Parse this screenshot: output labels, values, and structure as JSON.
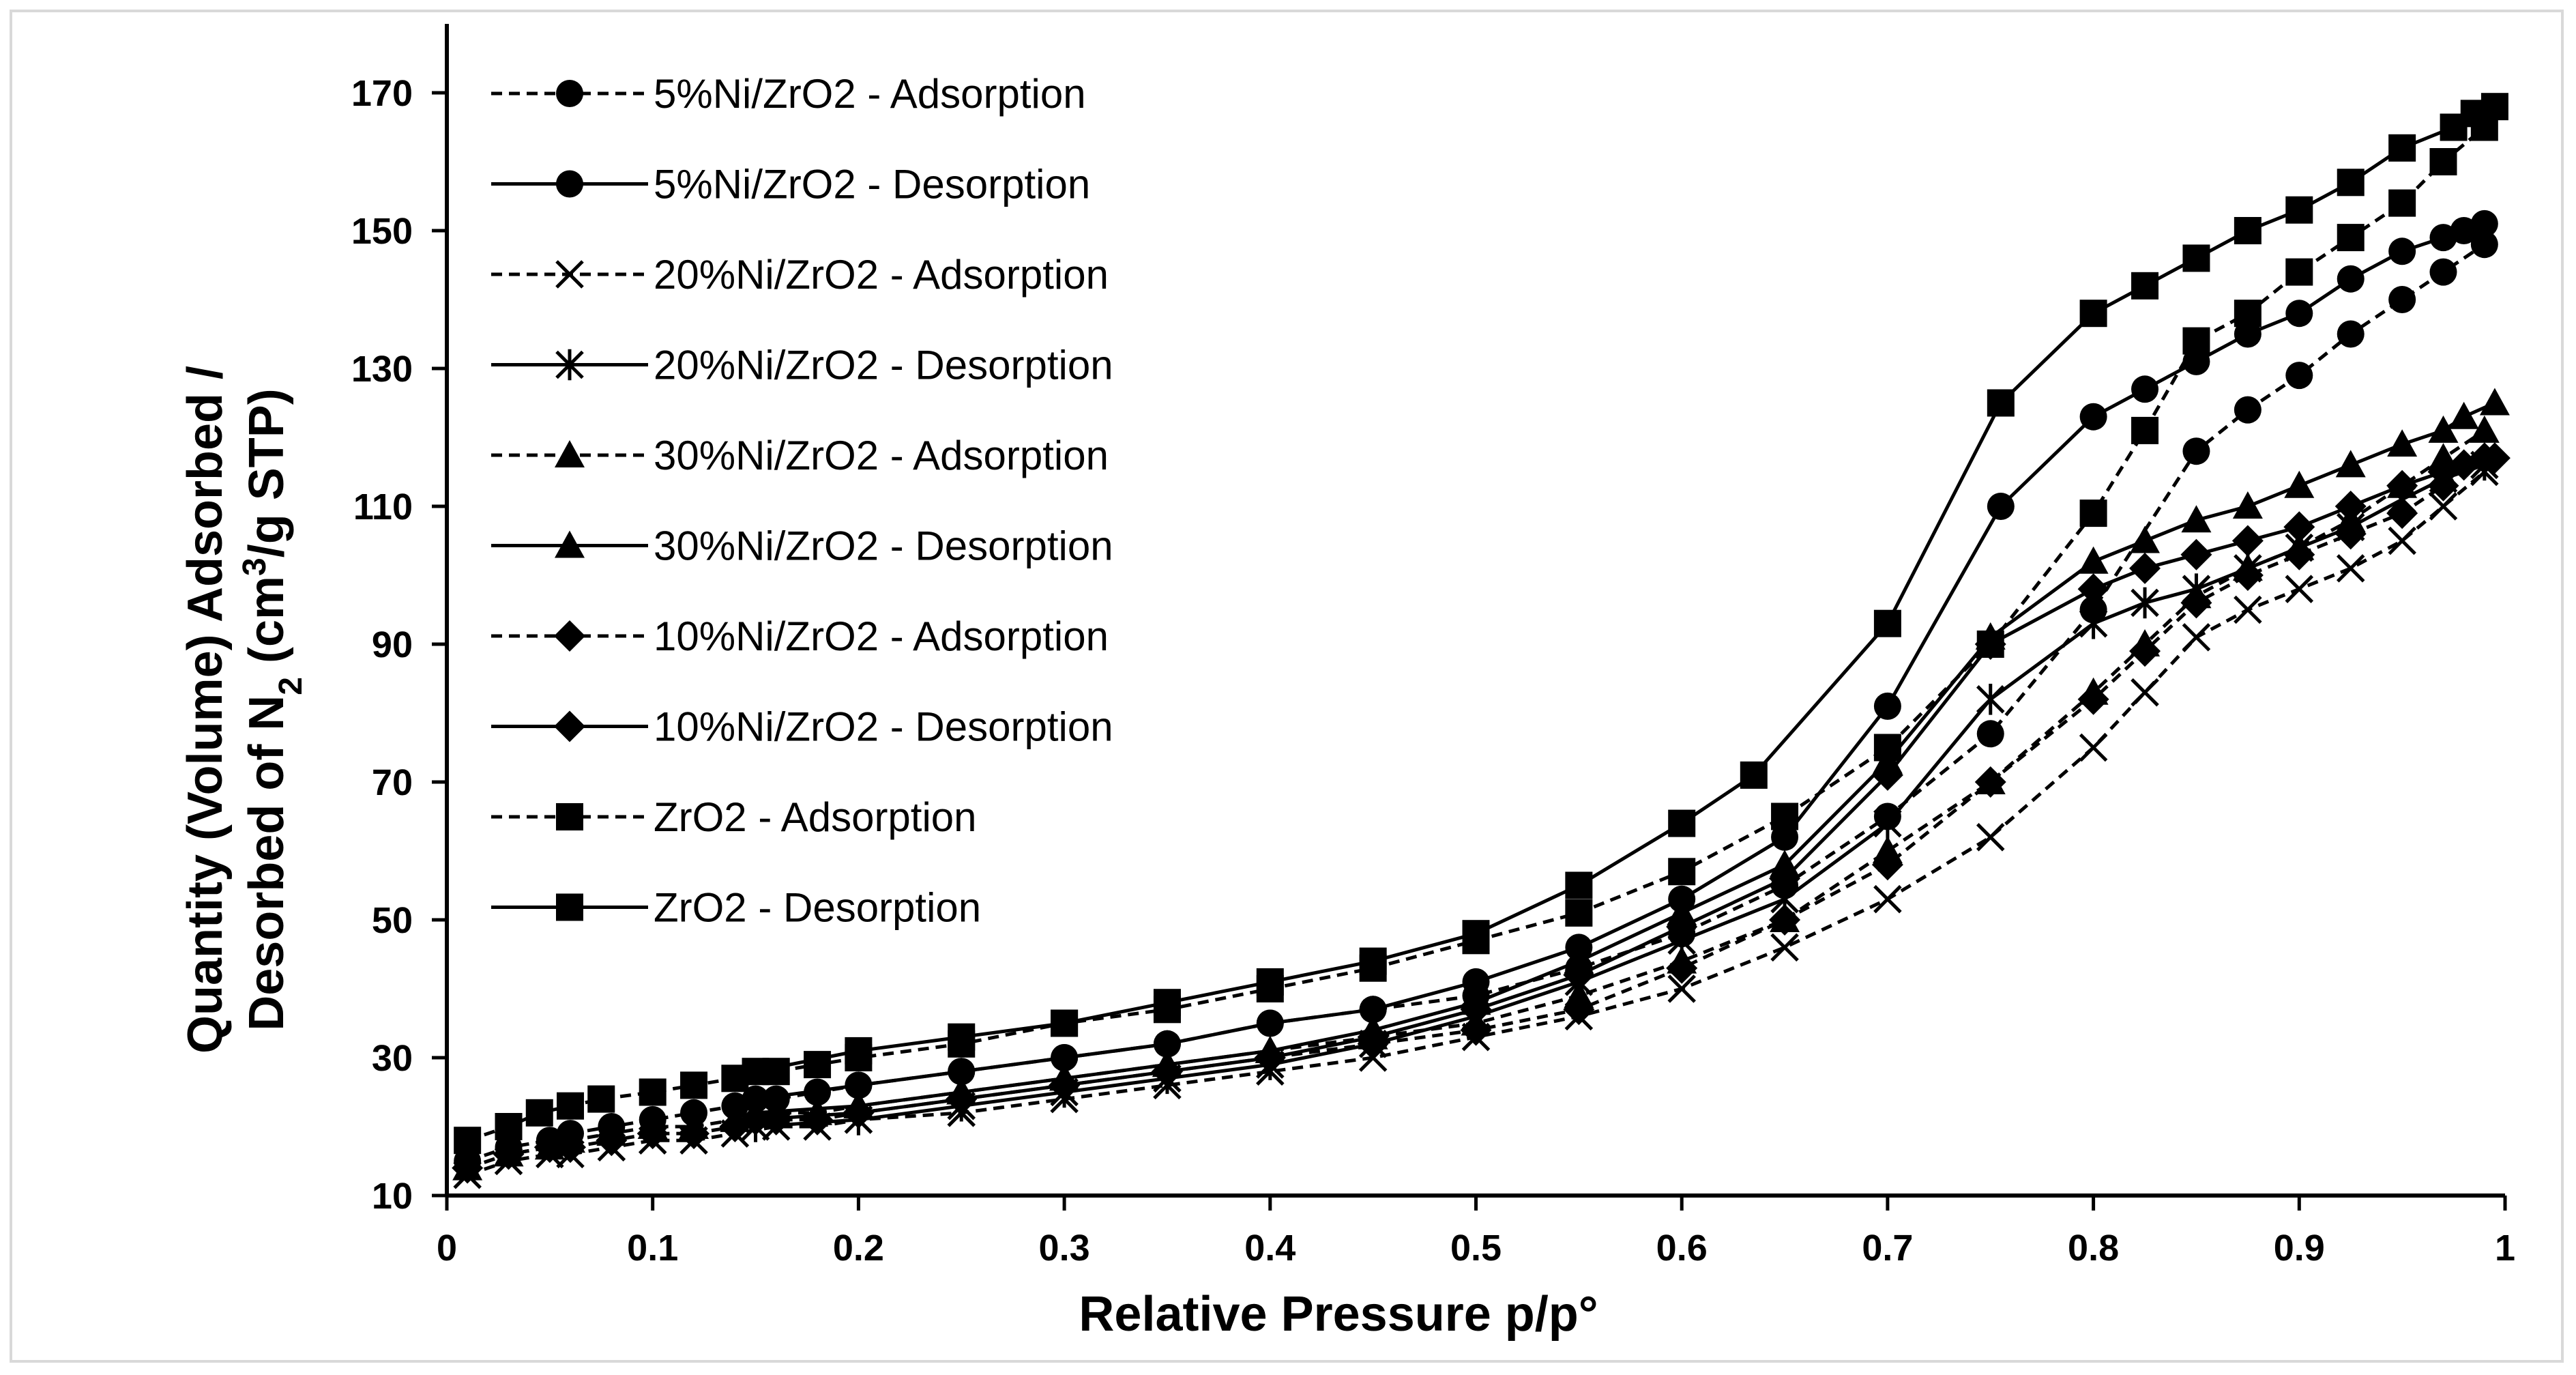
{
  "chart_data": {
    "type": "line",
    "title": "",
    "xlabel": "Relative Pressure p/p°",
    "ylabel_line1": "Quantity (Volume)  Adsorbed /",
    "ylabel_line2_prefix": "Desorbed of N",
    "ylabel_line2_sub": "2",
    "ylabel_line2_mid": " (cm",
    "ylabel_line2_sup": "3",
    "ylabel_line2_suffix": "/g STP)",
    "xlim": [
      0,
      1
    ],
    "ylim": [
      10,
      180
    ],
    "x_ticks": [
      "0",
      "0.1",
      "0.2",
      "0.3",
      "0.4",
      "0.5",
      "0.6",
      "0.7",
      "0.8",
      "0.9",
      "1"
    ],
    "y_ticks": [
      "10",
      "30",
      "50",
      "70",
      "90",
      "110",
      "130",
      "150",
      "170"
    ],
    "grid": false,
    "legend_position": "top-left",
    "series": [
      {
        "name": "5%Ni/ZrO2 - Adsorption",
        "marker": "circle",
        "dash": "dashed",
        "x": [
          0.01,
          0.03,
          0.05,
          0.06,
          0.08,
          0.1,
          0.12,
          0.14,
          0.16,
          0.18,
          0.2,
          0.25,
          0.3,
          0.35,
          0.4,
          0.45,
          0.5,
          0.55,
          0.6,
          0.65,
          0.7,
          0.75,
          0.8,
          0.85,
          0.875,
          0.9,
          0.925,
          0.95,
          0.97,
          0.99
        ],
        "y": [
          15,
          17,
          18,
          19,
          20,
          21,
          22,
          23,
          24,
          25,
          26,
          28,
          30,
          32,
          35,
          37,
          39,
          43,
          48,
          55,
          65,
          77,
          95,
          118,
          124,
          129,
          135,
          140,
          144,
          148
        ]
      },
      {
        "name": "5%Ni/ZrO2 - Desorption",
        "marker": "circle",
        "dash": "solid",
        "x": [
          0.99,
          0.98,
          0.97,
          0.95,
          0.925,
          0.9,
          0.875,
          0.85,
          0.825,
          0.8,
          0.755,
          0.7,
          0.65,
          0.6,
          0.55,
          0.5,
          0.45,
          0.4,
          0.35,
          0.3,
          0.25,
          0.2,
          0.15
        ],
        "y": [
          151,
          150,
          149,
          147,
          143,
          138,
          135,
          131,
          127,
          123,
          110,
          81,
          62,
          53,
          46,
          41,
          37,
          35,
          32,
          30,
          28,
          26,
          24
        ]
      },
      {
        "name": "20%Ni/ZrO2 - Adsorption",
        "marker": "x",
        "dash": "dashed",
        "x": [
          0.01,
          0.03,
          0.05,
          0.06,
          0.08,
          0.1,
          0.12,
          0.14,
          0.16,
          0.18,
          0.2,
          0.25,
          0.3,
          0.35,
          0.4,
          0.45,
          0.5,
          0.55,
          0.6,
          0.65,
          0.7,
          0.75,
          0.8,
          0.825,
          0.85,
          0.875,
          0.9,
          0.925,
          0.95,
          0.97,
          0.99
        ],
        "y": [
          13,
          15,
          16,
          16,
          17,
          18,
          18,
          19,
          20,
          20,
          21,
          22,
          24,
          26,
          28,
          30,
          33,
          36,
          40,
          46,
          53,
          62,
          75,
          83,
          91,
          95,
          98,
          101,
          105,
          110,
          115
        ]
      },
      {
        "name": "20%Ni/ZrO2 - Desorption",
        "marker": "asterisk",
        "dash": "solid",
        "x": [
          0.99,
          0.97,
          0.95,
          0.925,
          0.9,
          0.875,
          0.85,
          0.825,
          0.8,
          0.75,
          0.7,
          0.65,
          0.6,
          0.55,
          0.5,
          0.45,
          0.4,
          0.35,
          0.3,
          0.25,
          0.2,
          0.15
        ],
        "y": [
          116,
          114,
          111,
          107,
          104,
          101,
          98,
          96,
          93,
          82,
          64,
          53,
          47,
          41,
          36,
          32,
          29,
          27,
          25,
          23,
          21,
          20
        ]
      },
      {
        "name": "30%Ni/ZrO2 - Adsorption",
        "marker": "triangle",
        "dash": "dashed",
        "x": [
          0.01,
          0.03,
          0.05,
          0.06,
          0.08,
          0.1,
          0.12,
          0.14,
          0.16,
          0.18,
          0.2,
          0.25,
          0.3,
          0.35,
          0.4,
          0.45,
          0.5,
          0.55,
          0.6,
          0.65,
          0.7,
          0.75,
          0.8,
          0.825,
          0.85,
          0.875,
          0.9,
          0.925,
          0.95,
          0.97,
          0.99
        ],
        "y": [
          14,
          16,
          17,
          18,
          19,
          20,
          20,
          21,
          22,
          22,
          23,
          25,
          27,
          29,
          31,
          33,
          35,
          39,
          44,
          50,
          60,
          70,
          83,
          90,
          97,
          101,
          104,
          108,
          113,
          117,
          121
        ]
      },
      {
        "name": "30%Ni/ZrO2 - Desorption",
        "marker": "triangle",
        "dash": "solid",
        "x": [
          0.995,
          0.98,
          0.97,
          0.95,
          0.925,
          0.9,
          0.875,
          0.85,
          0.825,
          0.8,
          0.75,
          0.7,
          0.65,
          0.6,
          0.55,
          0.5,
          0.45,
          0.4,
          0.35,
          0.3,
          0.25,
          0.2,
          0.15
        ],
        "y": [
          125,
          123,
          121,
          119,
          116,
          113,
          110,
          108,
          105,
          102,
          91,
          73,
          58,
          51,
          44,
          38,
          34,
          31,
          29,
          27,
          25,
          23,
          22
        ]
      },
      {
        "name": "10%Ni/ZrO2 - Adsorption",
        "marker": "diamond",
        "dash": "dashed",
        "x": [
          0.01,
          0.03,
          0.05,
          0.06,
          0.08,
          0.1,
          0.12,
          0.14,
          0.16,
          0.18,
          0.2,
          0.25,
          0.3,
          0.35,
          0.4,
          0.45,
          0.5,
          0.55,
          0.6,
          0.65,
          0.7,
          0.75,
          0.8,
          0.825,
          0.85,
          0.875,
          0.9,
          0.925,
          0.95,
          0.97,
          0.99
        ],
        "y": [
          14,
          16,
          17,
          17,
          18,
          19,
          19,
          20,
          21,
          21,
          22,
          24,
          26,
          28,
          30,
          32,
          34,
          37,
          43,
          50,
          58,
          70,
          82,
          89,
          96,
          100,
          103,
          106,
          109,
          113,
          117
        ]
      },
      {
        "name": "10%Ni/ZrO2 - Desorption",
        "marker": "diamond",
        "dash": "solid",
        "x": [
          0.995,
          0.98,
          0.97,
          0.95,
          0.925,
          0.9,
          0.875,
          0.85,
          0.825,
          0.8,
          0.75,
          0.7,
          0.65,
          0.6,
          0.55,
          0.5,
          0.45,
          0.4,
          0.35,
          0.3,
          0.25,
          0.2,
          0.15
        ],
        "y": [
          117,
          116,
          115,
          113,
          110,
          107,
          105,
          103,
          101,
          98,
          90,
          71,
          56,
          49,
          42,
          37,
          33,
          30,
          28,
          26,
          24,
          22,
          21
        ]
      },
      {
        "name": "ZrO2 - Adsorption",
        "marker": "square",
        "dash": "dashed",
        "x": [
          0.01,
          0.03,
          0.045,
          0.06,
          0.075,
          0.1,
          0.12,
          0.14,
          0.16,
          0.18,
          0.2,
          0.25,
          0.3,
          0.35,
          0.4,
          0.45,
          0.5,
          0.55,
          0.6,
          0.65,
          0.7,
          0.75,
          0.8,
          0.825,
          0.85,
          0.875,
          0.9,
          0.925,
          0.95,
          0.97,
          0.99
        ],
        "y": [
          18,
          20,
          22,
          23,
          24,
          25,
          26,
          27,
          28,
          29,
          30,
          32,
          35,
          37,
          40,
          43,
          47,
          51,
          57,
          65,
          75,
          90,
          109,
          121,
          134,
          138,
          144,
          149,
          154,
          160,
          165
        ]
      },
      {
        "name": "ZrO2 - Desorption",
        "marker": "square",
        "dash": "solid",
        "x": [
          0.995,
          0.985,
          0.975,
          0.95,
          0.925,
          0.9,
          0.875,
          0.85,
          0.825,
          0.8,
          0.755,
          0.7,
          0.635,
          0.6,
          0.55,
          0.5,
          0.45,
          0.4,
          0.35,
          0.3,
          0.25,
          0.2,
          0.15
        ],
        "y": [
          168,
          167,
          165,
          162,
          157,
          153,
          150,
          146,
          142,
          138,
          125,
          93,
          71,
          64,
          55,
          48,
          44,
          41,
          38,
          35,
          33,
          31,
          28
        ]
      }
    ]
  }
}
